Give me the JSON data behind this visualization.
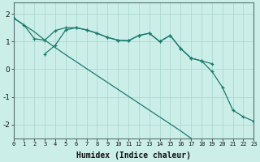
{
  "xlabel": "Humidex (Indice chaleur)",
  "background_color": "#cceee8",
  "grid_color": "#aad8d0",
  "line_color": "#1a7a6e",
  "xlim": [
    0,
    23
  ],
  "ylim": [
    -2.5,
    2.4
  ],
  "yticks": [
    -2,
    -1,
    0,
    1,
    2
  ],
  "xticks": [
    0,
    1,
    2,
    3,
    4,
    5,
    6,
    7,
    8,
    9,
    10,
    11,
    12,
    13,
    14,
    15,
    16,
    17,
    18,
    19,
    20,
    21,
    22,
    23
  ],
  "line1_x": [
    0,
    1,
    2,
    3,
    4,
    5,
    6,
    7,
    8,
    9,
    10,
    11,
    12,
    13,
    14,
    15,
    16,
    17,
    18,
    19,
    20
  ],
  "line1_y": [
    1.85,
    1.6,
    1.35,
    1.05,
    0.78,
    0.52,
    0.27,
    0.02,
    -0.23,
    -0.48,
    -0.73,
    -0.98,
    -1.23,
    -1.48,
    -1.73,
    -1.98,
    -2.23,
    -2.5,
    -2.5,
    -2.5,
    -2.5
  ],
  "line2_x": [
    0,
    1,
    2,
    3,
    4,
    5,
    6,
    7,
    8,
    9,
    10,
    11,
    12,
    13,
    14,
    15,
    16,
    17,
    18,
    19
  ],
  "line2_y": [
    1.85,
    1.6,
    1.1,
    1.05,
    1.4,
    1.5,
    1.5,
    1.42,
    1.3,
    1.15,
    1.05,
    1.03,
    1.22,
    1.3,
    1.0,
    1.22,
    0.75,
    0.4,
    0.3,
    0.2
  ],
  "line3_x": [
    3,
    4,
    5,
    6,
    7,
    8,
    9,
    10,
    11,
    12,
    13,
    14,
    15,
    16,
    17,
    18,
    19,
    20,
    21,
    22,
    23
  ],
  "line3_y": [
    0.55,
    0.87,
    1.42,
    1.5,
    1.42,
    1.3,
    1.15,
    1.05,
    1.03,
    1.22,
    1.3,
    1.0,
    1.22,
    0.75,
    0.4,
    0.3,
    -0.08,
    -0.65,
    -1.48,
    -1.72,
    -1.88
  ]
}
